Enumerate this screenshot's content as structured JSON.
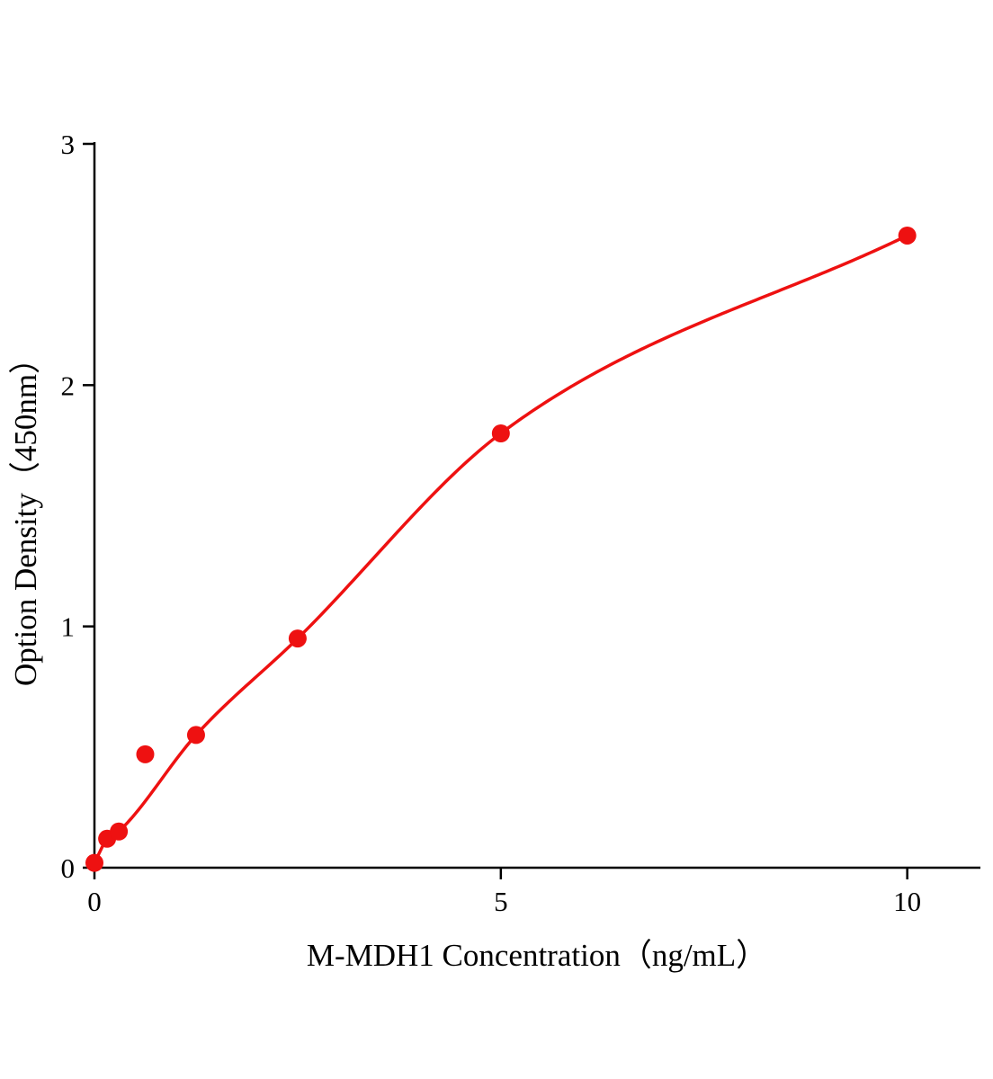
{
  "chart_data": {
    "type": "scatter",
    "title": "",
    "xlabel": "M-MDH1 Concentration（ng/mL）",
    "ylabel": "Option Density（450nm）",
    "points": {
      "x": [
        0,
        0.156,
        0.3,
        0.625,
        1.25,
        2.5,
        5,
        10
      ],
      "y": [
        0.02,
        0.12,
        0.15,
        0.47,
        0.55,
        0.95,
        1.8,
        2.62
      ]
    },
    "fit_curve": {
      "style": "smooth",
      "through_indices": [
        0,
        1,
        2,
        4,
        5,
        6,
        7
      ]
    },
    "xlim": [
      0,
      10.9
    ],
    "ylim": [
      0,
      3
    ],
    "xticks": [
      0,
      5,
      10
    ],
    "yticks": [
      0,
      1,
      2,
      3
    ],
    "grid": false,
    "legend": "none",
    "marker_color": "#ee1111",
    "line_color": "#ee1111",
    "axis_color": "#000000"
  }
}
